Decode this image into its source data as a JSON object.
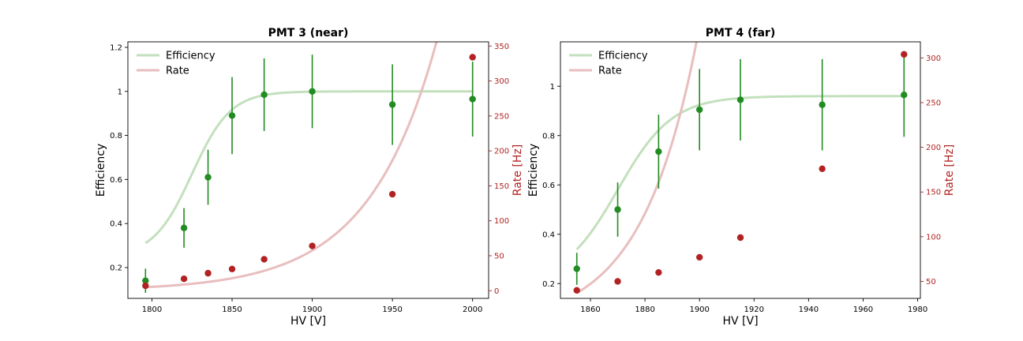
{
  "chart_data": [
    {
      "type": "line",
      "title": "PMT 3 (near)",
      "xlabel": "HV [V]",
      "ylabel": "Efficiency",
      "ylabel_right": "Rate [Hz]",
      "xlim": [
        1785,
        2010
      ],
      "ylim": [
        0.06,
        1.225
      ],
      "ylim_right": [
        -11,
        356
      ],
      "x_ticks": [
        1800,
        1850,
        1900,
        1950,
        2000
      ],
      "y_ticks": [
        0.2,
        0.4,
        0.6,
        0.8,
        1.0,
        1.2
      ],
      "y_ticks_right": [
        0,
        50,
        100,
        150,
        200,
        250,
        300,
        350
      ],
      "grid": false,
      "legend": "top-left",
      "series": [
        {
          "name": "Efficiency",
          "axis": "left",
          "color": "#228b22",
          "fit_color": "#c3e0bd",
          "x": [
            1796,
            1820,
            1835,
            1850,
            1870,
            1900,
            1950,
            2000
          ],
          "y": [
            0.14,
            0.38,
            0.61,
            0.89,
            0.985,
            1.0,
            0.94,
            0.965
          ],
          "yerr": [
            0.055,
            0.09,
            0.125,
            0.175,
            0.165,
            0.167,
            0.183,
            0.17
          ],
          "fit": {
            "model": "sigmoid",
            "a": 1.0,
            "b": 0.25,
            "c": 1825,
            "s": 12
          }
        },
        {
          "name": "Rate",
          "axis": "right",
          "color": "#b22222",
          "fit_color": "#e8bebe",
          "x": [
            1796,
            1820,
            1835,
            1850,
            1870,
            1900,
            1950,
            2000
          ],
          "y": [
            7,
            17,
            25,
            31,
            45,
            64,
            138,
            334
          ],
          "fit": {
            "model": "exp",
            "a": 5,
            "b": 2.35,
            "c": 1796,
            "s": 50
          }
        }
      ]
    },
    {
      "type": "line",
      "title": "PMT 4 (far)",
      "xlabel": "HV [V]",
      "ylabel": "Efficiency",
      "ylabel_right": "Rate [Hz]",
      "xlim": [
        1849,
        1981
      ],
      "ylim": [
        0.14,
        1.18
      ],
      "ylim_right": [
        31,
        318
      ],
      "x_ticks": [
        1860,
        1880,
        1900,
        1920,
        1940,
        1960,
        1980
      ],
      "y_ticks": [
        0.2,
        0.4,
        0.6,
        0.8,
        1.0
      ],
      "y_ticks_right": [
        50,
        100,
        150,
        200,
        250,
        300
      ],
      "grid": false,
      "legend": "top-left",
      "series": [
        {
          "name": "Efficiency",
          "axis": "left",
          "color": "#228b22",
          "fit_color": "#c3e0bd",
          "x": [
            1855,
            1870,
            1885,
            1900,
            1915,
            1945,
            1975
          ],
          "y": [
            0.26,
            0.5,
            0.735,
            0.905,
            0.945,
            0.925,
            0.965
          ],
          "yerr": [
            0.065,
            0.11,
            0.15,
            0.165,
            0.165,
            0.185,
            0.17
          ],
          "fit": {
            "model": "sigmoid",
            "a": 0.96,
            "b": 0.2,
            "c": 1870,
            "s": 10
          }
        },
        {
          "name": "Rate",
          "axis": "right",
          "color": "#b22222",
          "fit_color": "#e8bebe",
          "x": [
            1855,
            1870,
            1885,
            1900,
            1915,
            1945,
            1975
          ],
          "y": [
            40,
            50,
            60,
            77,
            99,
            176,
            304
          ],
          "fit": {
            "model": "exp",
            "a": 37,
            "b": 4.9,
            "c": 1855,
            "s": 66
          }
        }
      ]
    }
  ]
}
